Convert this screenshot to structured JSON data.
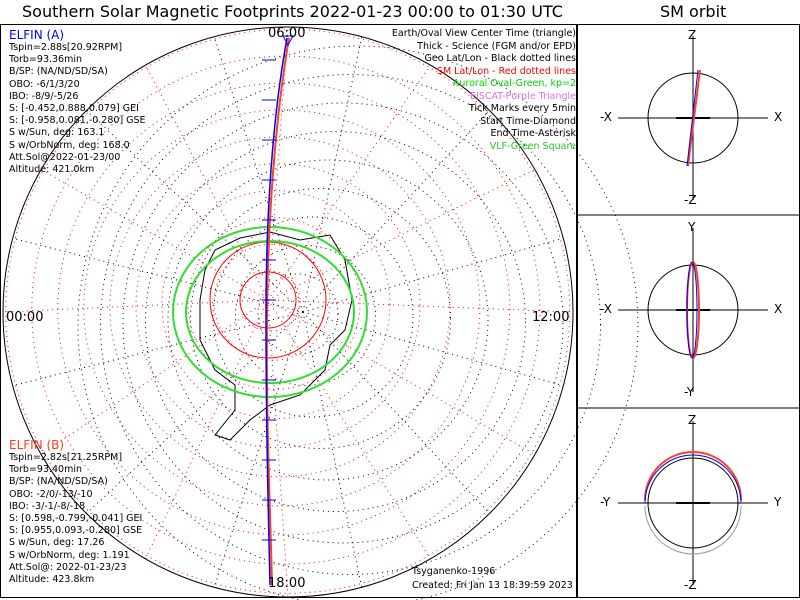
{
  "title": "Southern Solar Magnetic Footprints 2022-01-23 00:00 to 01:30 UTC",
  "orbit_title": "SM orbit",
  "map": {
    "time_labels": {
      "top": "06:00",
      "bottom": "18:00",
      "left": "00:00",
      "right": "12:00"
    }
  },
  "elfin_a": {
    "name": "ELFIN (A)",
    "color": "#0000ff",
    "lines": [
      "Tspin=2.88s[20.92RPM]",
      "Torb=93.36min",
      "B/SP: (NA/ND/SD/SA)",
      "OBO: -6/1/3/20",
      "IBO: -8/9/-5/26",
      "S: [-0.452,0.888,0.079] GEI",
      "S: [-0.958,0.081,-0.280] GSE",
      "S w/Sun, deg: 163.1",
      "S w/OrbNorm, deg: 168.0",
      "Att.Sol@2022-01-23/00",
      "Altitude: 421.0km"
    ]
  },
  "elfin_b": {
    "name": "ELFIN (B)",
    "color": "#ff4020",
    "lines": [
      "Tspin=2.82s[21.25RPM]",
      "Torb=93.40min",
      "B/SP: (NA/ND/SD/SA)",
      "OBO: -2/0/-13/-10",
      "IBO: -3/-1/-8/-18",
      "S: [0.598,-0.799,-0.041] GEI",
      "S: [0.955,0.093,-0.280] GSE",
      "S w/Sun, deg: 17.26",
      "S w/OrbNorm, deg: 1.191",
      "Att.Sol@: 2022-01-23/23",
      "Altitude: 423.8km"
    ]
  },
  "legend": [
    {
      "text": "Earth/Oval View Center Time (triangle)",
      "color": "#000000"
    },
    {
      "text": "Thick - Science (FGM and/or EPD)",
      "color": "#000000"
    },
    {
      "text": "Geo Lat/Lon - Black dotted lines",
      "color": "#000000"
    },
    {
      "text": "SM Lat/Lon - Red dotted lines",
      "color": "#ff0000"
    },
    {
      "text": "Auroral Oval-Green, kp=2",
      "color": "#00d000"
    },
    {
      "text": "EISCAT-Purple Triangle",
      "color": "#e070e0"
    },
    {
      "text": "Tick Marks every 5min",
      "color": "#000000"
    },
    {
      "text": "Start Time-Diamond",
      "color": "#000000"
    },
    {
      "text": "End Time-Asterisk",
      "color": "#000000"
    },
    {
      "text": "VLF-Green Square",
      "color": "#30c030"
    }
  ],
  "footer": {
    "model": "Tsyganenko-1996",
    "created": "Created: Fri Jan 13 18:39:59 2023"
  },
  "orbit_panels": [
    {
      "top": "Z",
      "bottom": "-Z",
      "left": "-X",
      "right": "X"
    },
    {
      "top": "Y",
      "bottom": "-Y",
      "left": "-X",
      "right": "X"
    },
    {
      "top": "Z",
      "bottom": "-Z",
      "left": "-Y",
      "right": "Y"
    }
  ]
}
